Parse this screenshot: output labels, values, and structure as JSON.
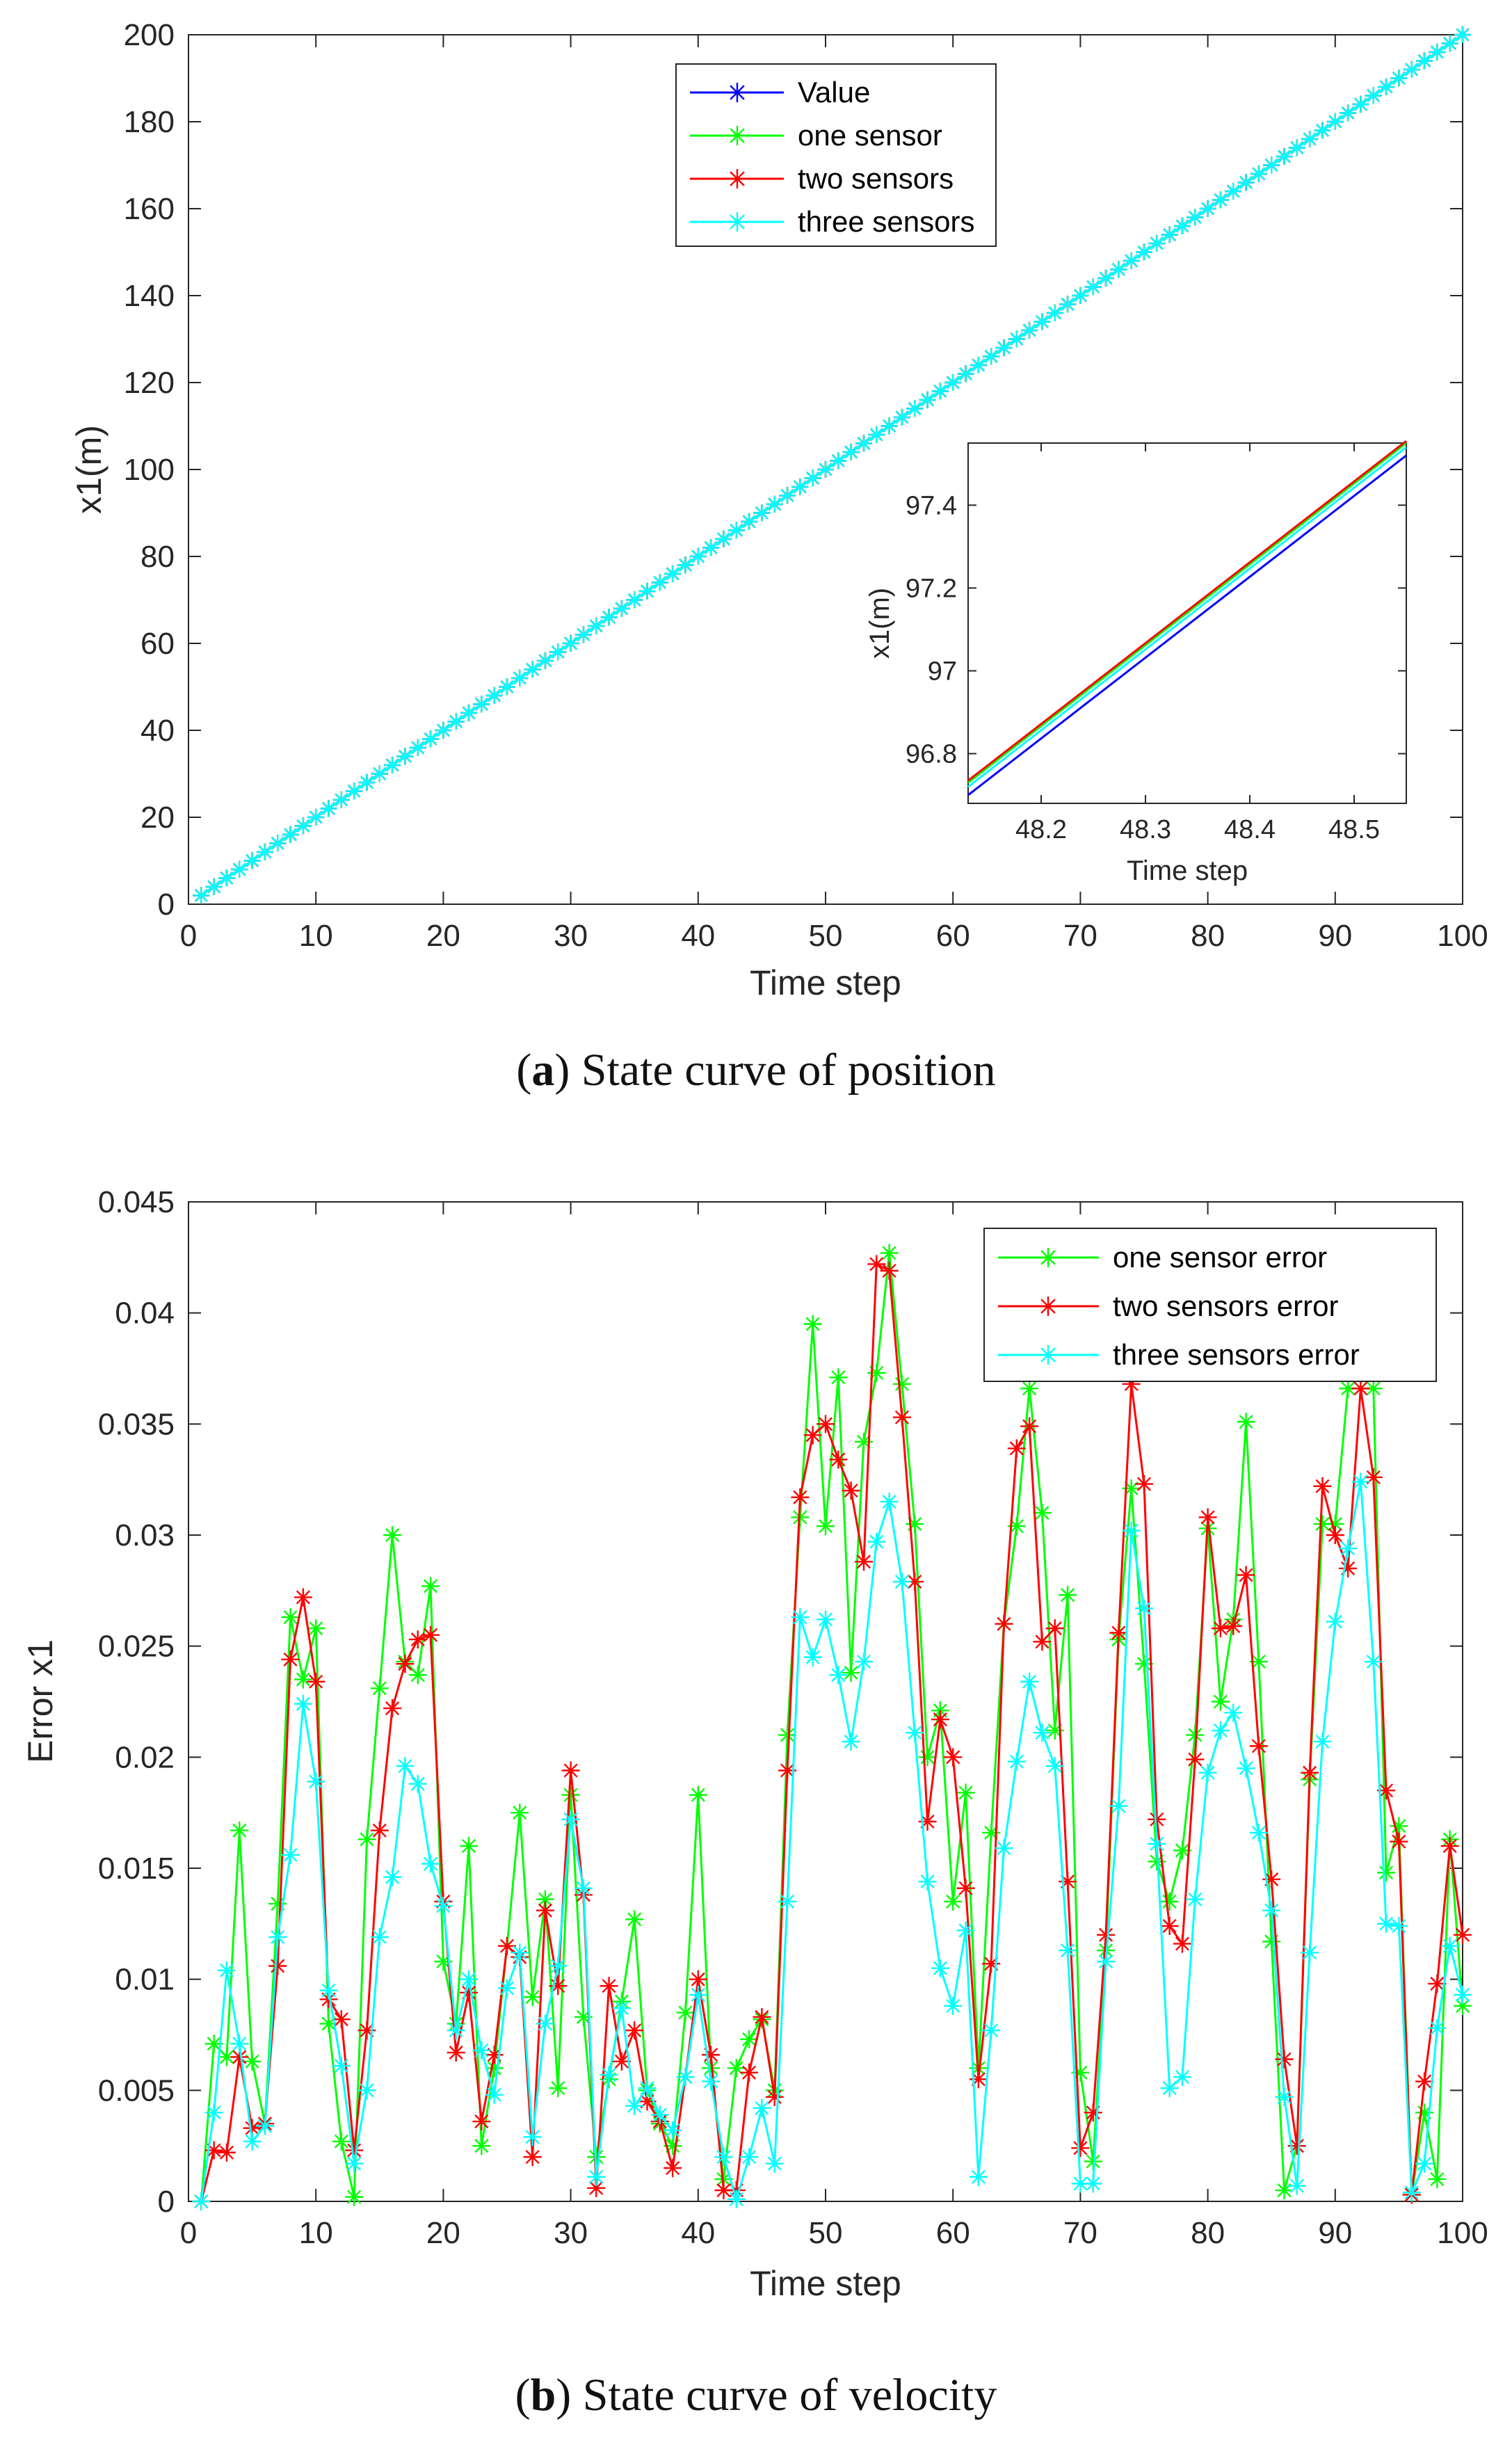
{
  "chart_data": [
    {
      "type": "line",
      "id": "a",
      "caption_letter": "a",
      "caption_text": " State curve of position",
      "xlabel": "Time step",
      "ylabel": "x1(m)",
      "xlim": [
        0,
        100
      ],
      "ylim": [
        0,
        200
      ],
      "xticks": [
        0,
        10,
        20,
        30,
        40,
        50,
        60,
        70,
        80,
        90,
        100
      ],
      "yticks": [
        0,
        20,
        40,
        60,
        80,
        100,
        120,
        140,
        160,
        180,
        200
      ],
      "legend_position": "top-center",
      "series": [
        {
          "name": "Value",
          "color": "#0000ff",
          "marker": "*",
          "slope": 2.0,
          "offset": 0.0
        },
        {
          "name": "one sensor",
          "color": "#00ff00",
          "marker": "*",
          "slope": 2.0,
          "offset": 0.03
        },
        {
          "name": "two sensors",
          "color": "#ff0000",
          "marker": "*",
          "slope": 2.0,
          "offset": 0.04
        },
        {
          "name": "three sensors",
          "color": "#00ffff",
          "marker": "*",
          "slope": 2.0,
          "offset": 0.02
        }
      ],
      "inset": {
        "xlabel": "Time step",
        "ylabel": "x1(m)",
        "xlim": [
          48.13,
          48.55
        ],
        "ylim": [
          96.68,
          97.55
        ],
        "xticks": [
          48.2,
          48.3,
          48.4,
          48.5
        ],
        "xtick_labels": [
          "48.2",
          "48.3",
          "48.4",
          "48.5"
        ],
        "yticks": [
          96.8,
          97.0,
          97.2,
          97.4
        ],
        "ytick_labels": [
          "96.8",
          "97",
          "97.2",
          "97.4"
        ],
        "lines": [
          {
            "name": "Value",
            "color": "#0000ff",
            "y_start": 96.7,
            "y_end": 97.52
          },
          {
            "name": "three sensors",
            "color": "#00ffff",
            "y_start": 96.72,
            "y_end": 97.54
          },
          {
            "name": "one sensor",
            "color": "#00ff00",
            "y_start": 96.73,
            "y_end": 97.55
          },
          {
            "name": "two sensors",
            "color": "#ff0000",
            "y_start": 96.735,
            "y_end": 97.555
          }
        ]
      }
    },
    {
      "type": "line",
      "id": "b",
      "caption_letter": "b",
      "caption_text": " State curve of velocity",
      "xlabel": "Time step",
      "ylabel": "Error x1",
      "xlim": [
        0,
        100
      ],
      "ylim": [
        0,
        0.045
      ],
      "xticks": [
        0,
        10,
        20,
        30,
        40,
        50,
        60,
        70,
        80,
        90,
        100
      ],
      "yticks": [
        0,
        0.005,
        0.01,
        0.015,
        0.02,
        0.025,
        0.03,
        0.035,
        0.04,
        0.045
      ],
      "ytick_labels": [
        "0",
        "0.005",
        "0.01",
        "0.015",
        "0.02",
        "0.025",
        "0.03",
        "0.035",
        "0.04",
        "0.045"
      ],
      "legend_position": "top-right",
      "x": [
        1,
        2,
        3,
        4,
        5,
        6,
        7,
        8,
        9,
        10,
        11,
        12,
        13,
        14,
        15,
        16,
        17,
        18,
        19,
        20,
        21,
        22,
        23,
        24,
        25,
        26,
        27,
        28,
        29,
        30,
        31,
        32,
        33,
        34,
        35,
        36,
        37,
        38,
        39,
        40,
        41,
        42,
        43,
        44,
        45,
        46,
        47,
        48,
        49,
        50,
        51,
        52,
        53,
        54,
        55,
        56,
        57,
        58,
        59,
        60,
        61,
        62,
        63,
        64,
        65,
        66,
        67,
        68,
        69,
        70,
        71,
        72,
        73,
        74,
        75,
        76,
        77,
        78,
        79,
        80,
        81,
        82,
        83,
        84,
        85,
        86,
        87,
        88,
        89,
        90,
        91,
        92,
        93,
        94,
        95,
        96,
        97,
        98,
        99,
        100
      ],
      "series": [
        {
          "name": "one sensor error",
          "color": "#00ff00",
          "marker": "*",
          "values": [
            0.0,
            0.0071,
            0.0065,
            0.0167,
            0.0063,
            0.0035,
            0.0134,
            0.0263,
            0.0235,
            0.0258,
            0.008,
            0.0027,
            0.0002,
            0.0163,
            0.0231,
            0.03,
            0.0243,
            0.0237,
            0.0277,
            0.0108,
            0.008,
            0.016,
            0.0025,
            0.006,
            0.0115,
            0.0175,
            0.0092,
            0.0136,
            0.0051,
            0.0183,
            0.0083,
            0.002,
            0.0055,
            0.009,
            0.0127,
            0.005,
            0.0035,
            0.0025,
            0.0085,
            0.0183,
            0.006,
            0.001,
            0.006,
            0.0073,
            0.0082,
            0.005,
            0.021,
            0.0308,
            0.0395,
            0.0304,
            0.0371,
            0.0238,
            0.0342,
            0.0373,
            0.0427,
            0.0368,
            0.0305,
            0.02,
            0.0221,
            0.0135,
            0.0184,
            0.006,
            0.0166,
            0.026,
            0.0304,
            0.0366,
            0.031,
            0.0212,
            0.0273,
            0.0058,
            0.0018,
            0.0113,
            0.0253,
            0.0321,
            0.0242,
            0.0153,
            0.0135,
            0.0158,
            0.021,
            0.0303,
            0.0225,
            0.0262,
            0.0351,
            0.0243,
            0.0117,
            0.0005,
            0.0025,
            0.019,
            0.0305,
            0.0305,
            0.0366,
            0.0366,
            0.0366,
            0.0148,
            0.0169,
            0.0003,
            0.004,
            0.001,
            0.0163,
            0.0088
          ]
        },
        {
          "name": "two sensors error",
          "color": "#ff0000",
          "marker": "*",
          "values": [
            0.0,
            0.0023,
            0.0022,
            0.0065,
            0.0033,
            0.0035,
            0.0106,
            0.0244,
            0.0272,
            0.0234,
            0.0091,
            0.0082,
            0.0023,
            0.0077,
            0.0167,
            0.0222,
            0.0242,
            0.0253,
            0.0255,
            0.0135,
            0.0067,
            0.0094,
            0.0036,
            0.0066,
            0.0115,
            0.011,
            0.002,
            0.0131,
            0.0097,
            0.0194,
            0.0138,
            0.0006,
            0.0097,
            0.0063,
            0.0077,
            0.0045,
            0.0036,
            0.0015,
            0.0056,
            0.01,
            0.0066,
            0.0005,
            0.0005,
            0.0058,
            0.0083,
            0.0047,
            0.0194,
            0.0317,
            0.0345,
            0.035,
            0.0334,
            0.032,
            0.0288,
            0.0422,
            0.0419,
            0.0353,
            0.0279,
            0.0171,
            0.0217,
            0.02,
            0.0141,
            0.0055,
            0.0107,
            0.026,
            0.0339,
            0.0349,
            0.0252,
            0.0258,
            0.0144,
            0.0024,
            0.004,
            0.012,
            0.0256,
            0.0368,
            0.0323,
            0.0172,
            0.0124,
            0.0116,
            0.0199,
            0.0308,
            0.0258,
            0.0259,
            0.0282,
            0.0205,
            0.0145,
            0.0064,
            0.0025,
            0.0193,
            0.0322,
            0.03,
            0.0285,
            0.0366,
            0.0326,
            0.0185,
            0.0162,
            0.0003,
            0.0054,
            0.0098,
            0.016,
            0.012
          ]
        },
        {
          "name": "three sensors error",
          "color": "#00ffff",
          "marker": "*",
          "values": [
            0.0,
            0.004,
            0.0104,
            0.0071,
            0.0027,
            0.0034,
            0.0119,
            0.0156,
            0.0224,
            0.0189,
            0.0095,
            0.0061,
            0.0017,
            0.005,
            0.0119,
            0.0146,
            0.0196,
            0.0188,
            0.0152,
            0.0133,
            0.0077,
            0.01,
            0.0068,
            0.0048,
            0.0096,
            0.0112,
            0.0029,
            0.008,
            0.0106,
            0.0172,
            0.0141,
            0.0011,
            0.0057,
            0.0087,
            0.0043,
            0.0051,
            0.0039,
            0.0032,
            0.0056,
            0.0093,
            0.0054,
            0.002,
            0.0001,
            0.002,
            0.0042,
            0.0017,
            0.0135,
            0.0263,
            0.0245,
            0.0262,
            0.0237,
            0.0207,
            0.0243,
            0.0297,
            0.0315,
            0.0279,
            0.0211,
            0.0144,
            0.0105,
            0.0088,
            0.0122,
            0.0011,
            0.0077,
            0.0159,
            0.0198,
            0.0234,
            0.0211,
            0.0196,
            0.0113,
            0.0008,
            0.0008,
            0.0108,
            0.0178,
            0.0302,
            0.0267,
            0.0161,
            0.0051,
            0.0056,
            0.0136,
            0.0193,
            0.0212,
            0.022,
            0.0195,
            0.0166,
            0.0131,
            0.0047,
            0.0007,
            0.0112,
            0.0207,
            0.0261,
            0.0294,
            0.0324,
            0.0243,
            0.0125,
            0.0124,
            0.0004,
            0.0017,
            0.0078,
            0.0115,
            0.0093
          ]
        }
      ]
    }
  ]
}
